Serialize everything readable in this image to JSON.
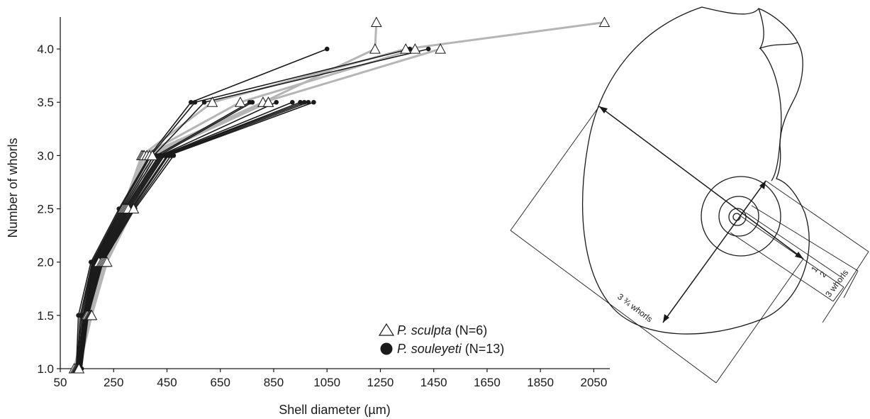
{
  "chart_data": {
    "type": "line",
    "xlabel": "Shell diameter (µm)",
    "ylabel": "Number of whorls",
    "xlim": [
      50,
      2110
    ],
    "ylim": [
      1.0,
      4.3
    ],
    "x_ticks": [
      50,
      250,
      450,
      650,
      850,
      1050,
      1250,
      1450,
      1650,
      1850,
      2050
    ],
    "y_ticks": [
      1.0,
      1.5,
      2.0,
      2.5,
      3.0,
      3.5,
      4.0
    ],
    "x_tick_labels": [
      "50",
      "250",
      "450",
      "650",
      "850",
      "1050",
      "1250",
      "1450",
      "1650",
      "1850",
      "2050"
    ],
    "y_tick_labels": [
      "1.0",
      "1.5",
      "2.0",
      "2.5",
      "3.0",
      "3.5",
      "4.0"
    ],
    "grid": false,
    "legend_position": "bottom-right",
    "legend": [
      {
        "marker": "open-triangle",
        "name_italic": "P. sculpta",
        "name_rest": " (N=6)",
        "color": "#b5b5b5"
      },
      {
        "marker": "filled-circle",
        "name_italic": "P. souleyeti",
        "name_rest": " (N=13)",
        "color": "#1a1a1a"
      }
    ],
    "whorls": [
      1.0,
      1.5,
      2.0,
      2.5,
      3.0,
      3.5,
      4.0,
      4.25
    ],
    "sculpta_series": [
      {
        "values": [
          102,
          148,
          195,
          285,
          355,
          620,
          1345,
          2090
        ]
      },
      {
        "values": [
          108,
          152,
          205,
          290,
          360,
          725,
          1380
        ]
      },
      {
        "values": [
          112,
          158,
          210,
          295,
          365,
          810,
          1475
        ]
      },
      {
        "values": [
          115,
          162,
          215,
          300,
          375,
          830
        ]
      },
      {
        "values": [
          118,
          165,
          220,
          305,
          385,
          810,
          1230,
          1235
        ]
      },
      {
        "values": [
          120,
          168,
          225,
          325,
          395,
          830
        ]
      }
    ],
    "souleyeti_series": [
      {
        "values": [
          110,
          118,
          165,
          270,
          385,
          540,
          1050
        ]
      },
      {
        "values": [
          112,
          125,
          170,
          275,
          390,
          555,
          1360
        ]
      },
      {
        "values": [
          115,
          130,
          172,
          280,
          400,
          590,
          1430
        ]
      },
      {
        "values": [
          118,
          135,
          175,
          285,
          410,
          760
        ]
      },
      {
        "values": [
          120,
          138,
          178,
          290,
          420,
          770
        ]
      },
      {
        "values": [
          122,
          140,
          182,
          295,
          425,
          860
        ]
      },
      {
        "values": [
          124,
          142,
          186,
          300,
          430,
          920
        ]
      },
      {
        "values": [
          125,
          144,
          190,
          305,
          435,
          950
        ]
      },
      {
        "values": [
          126,
          146,
          194,
          310,
          440,
          965
        ]
      },
      {
        "values": [
          127,
          148,
          198,
          315,
          450,
          980
        ]
      },
      {
        "values": [
          128,
          150,
          202,
          320,
          455,
          1000
        ]
      },
      {
        "values": [
          129,
          152,
          206,
          325,
          465
        ]
      },
      {
        "values": [
          130,
          155,
          210,
          330,
          475
        ]
      }
    ]
  },
  "diagram": {
    "labels": {
      "one": "1",
      "two": "2",
      "three_whorls": "3 whorls",
      "three_three_quarter_whorls": "3 ¾ whorls"
    },
    "colors": {
      "stroke": "#1a1a1a"
    }
  }
}
